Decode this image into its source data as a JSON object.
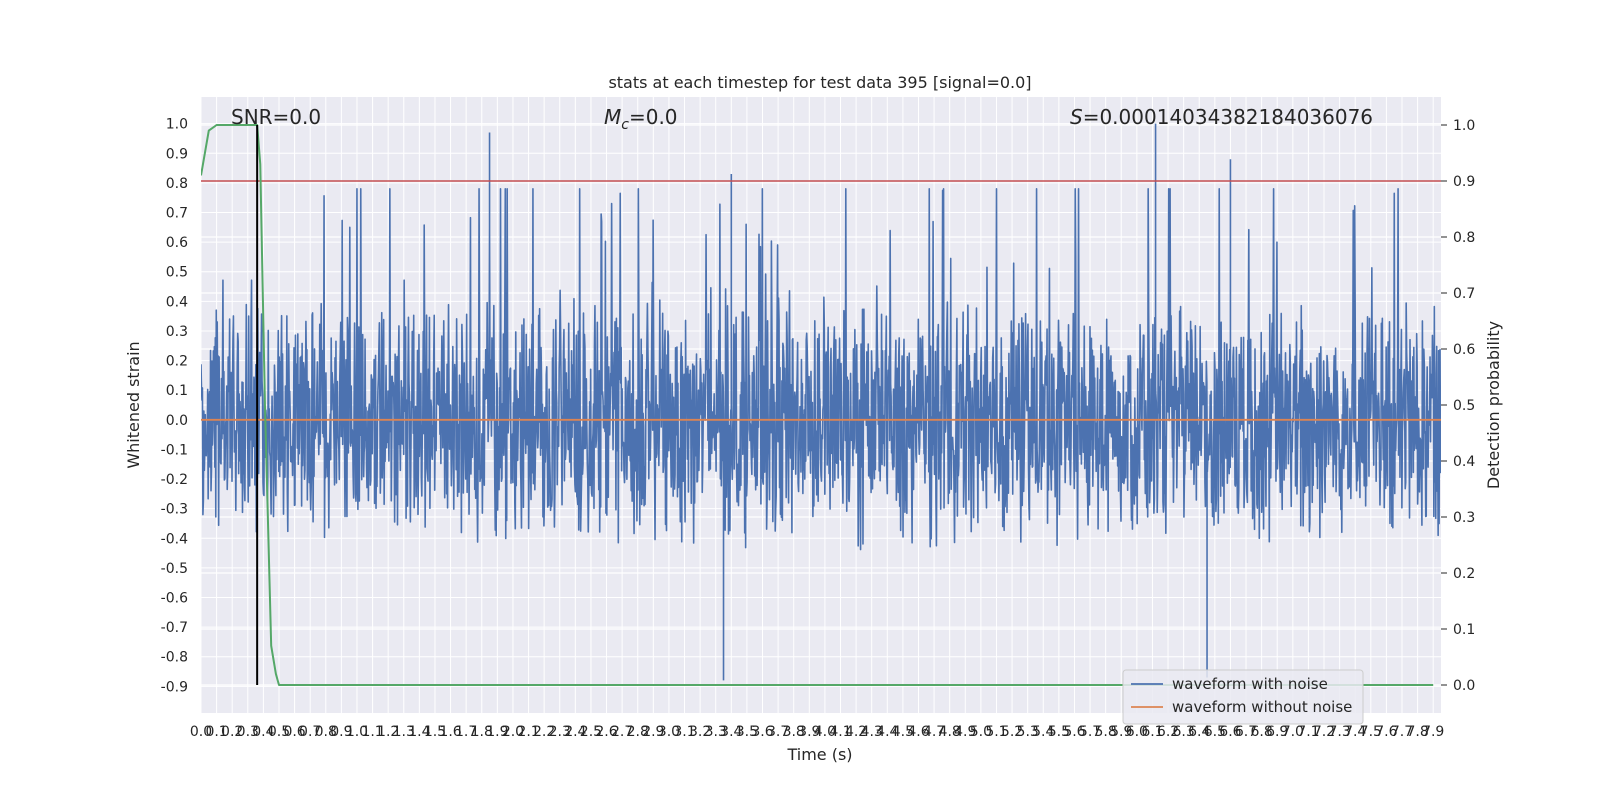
{
  "chart_data": {
    "type": "line",
    "title": "stats at each timestep for test data 395 [signal=0.0]",
    "xlabel": "Time (s)",
    "ylabel": "Whitened strain",
    "y2label": "Detection probability",
    "xlim": [
      0.0,
      7.95
    ],
    "ylim": [
      -0.99,
      1.09
    ],
    "y2lim": [
      -0.05,
      1.05
    ],
    "x_ticks": [
      0.0,
      0.1,
      0.2,
      0.3,
      0.4,
      0.5,
      0.6,
      0.7,
      0.8,
      0.9,
      1.0,
      1.1,
      1.2,
      1.3,
      1.4,
      1.5,
      1.6,
      1.7,
      1.8,
      1.9,
      2.0,
      2.1,
      2.2,
      2.3,
      2.4,
      2.5,
      2.6,
      2.7,
      2.8,
      2.9,
      3.0,
      3.1,
      3.2,
      3.3,
      3.4,
      3.5,
      3.6,
      3.7,
      3.8,
      3.9,
      4.0,
      4.1,
      4.2,
      4.3,
      4.4,
      4.5,
      4.6,
      4.7,
      4.8,
      4.9,
      5.0,
      5.1,
      5.2,
      5.3,
      5.4,
      5.5,
      5.6,
      5.7,
      5.8,
      5.9,
      6.0,
      6.1,
      6.2,
      6.3,
      6.4,
      6.5,
      6.6,
      6.7,
      6.8,
      6.9,
      7.0,
      7.1,
      7.2,
      7.3,
      7.4,
      7.5,
      7.6,
      7.7,
      7.8,
      7.9
    ],
    "y_ticks": [
      "1.0",
      "0.9",
      "0.8",
      "0.7",
      "0.6",
      "0.5",
      "0.4",
      "0.3",
      "0.2",
      "0.1",
      "0.0",
      "-0.1",
      "-0.2",
      "-0.3",
      "-0.4",
      "-0.5",
      "-0.6",
      "-0.7",
      "-0.8",
      "-0.9"
    ],
    "y2_ticks": [
      "1.0",
      "0.9",
      "0.8",
      "0.7",
      "0.6",
      "0.5",
      "0.4",
      "0.3",
      "0.2",
      "0.1",
      "0.0"
    ],
    "annotations": {
      "snr": "SNR=0.0",
      "mc_symbol": "M",
      "mc_sub": "c",
      "mc_value": "=0.0",
      "s_symbol": "S",
      "s_value": "=0.00014034382184036076"
    },
    "series": [
      {
        "name": "waveform with noise",
        "color": "#4c72b0",
        "description": "dense noisy whitened strain, roughly between -0.9 and 1.0",
        "peaks": [
          {
            "x": 1.85,
            "y": 0.97
          },
          {
            "x": 6.12,
            "y": 1.0
          },
          {
            "x": 6.6,
            "y": 0.88
          },
          {
            "x": 3.4,
            "y": 0.83
          },
          {
            "x": 3.35,
            "y": -0.88
          },
          {
            "x": 6.45,
            "y": -0.87
          }
        ]
      },
      {
        "name": "waveform without noise",
        "color": "#dd8452",
        "values_const": 0.0
      },
      {
        "name": "detection probability",
        "axis": "right",
        "color": "#55a868",
        "x": [
          0.0,
          0.05,
          0.1,
          0.2,
          0.3,
          0.36,
          0.38,
          0.41,
          0.45,
          0.48,
          0.5,
          1.0,
          2.0,
          3.0,
          4.0,
          5.0,
          6.0,
          7.0,
          7.9
        ],
        "values": [
          0.91,
          0.99,
          1.0,
          1.0,
          1.0,
          1.0,
          0.93,
          0.5,
          0.07,
          0.02,
          0.0,
          0.0,
          0.0,
          0.0,
          0.0,
          0.0,
          0.0,
          0.0,
          0.0
        ]
      }
    ],
    "threshold": {
      "axis": "right",
      "value": 0.9,
      "color": "#c44e52"
    },
    "marker_line": {
      "x": 0.36,
      "color": "#000000"
    },
    "legend": {
      "position": "lower-right",
      "entries": [
        {
          "label": "waveform with noise",
          "color": "#4c72b0"
        },
        {
          "label": "waveform without noise",
          "color": "#dd8452"
        }
      ]
    },
    "colors": {
      "background": "#eaeaf2",
      "grid": "#ffffff",
      "text": "#262626"
    }
  }
}
